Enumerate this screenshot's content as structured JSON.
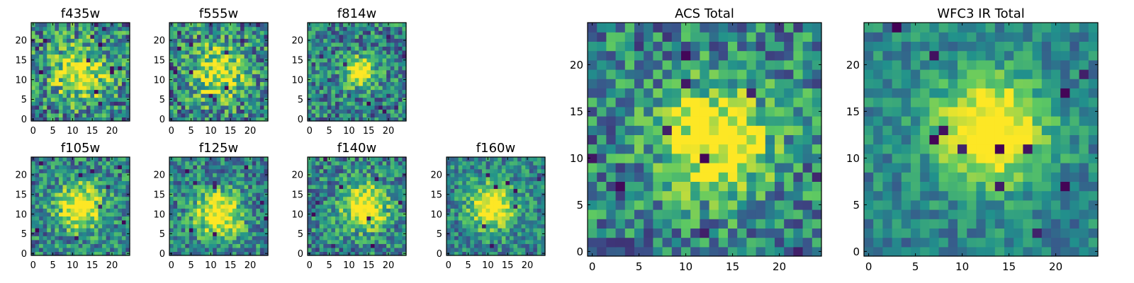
{
  "figure": {
    "background": "#ffffff",
    "colormap": [
      "#440154",
      "#3b528b",
      "#21918c",
      "#5ec962",
      "#fde725"
    ]
  },
  "chart_data": [
    {
      "type": "heatmap",
      "title": "f435w",
      "grid_size": 25,
      "xlim": [
        0,
        24
      ],
      "ylim": [
        0,
        24
      ],
      "xticks": [
        0,
        5,
        10,
        15,
        20
      ],
      "yticks": [
        0,
        5,
        10,
        15,
        20
      ],
      "center": [
        12,
        12
      ],
      "peak": 0.55,
      "width": 5,
      "noise": 0.35,
      "seed": 11,
      "dark_pixels": 14
    },
    {
      "type": "heatmap",
      "title": "f555w",
      "grid_size": 25,
      "xlim": [
        0,
        24
      ],
      "ylim": [
        0,
        24
      ],
      "xticks": [
        0,
        5,
        10,
        15,
        20
      ],
      "yticks": [
        0,
        5,
        10,
        15,
        20
      ],
      "center": [
        12,
        12
      ],
      "peak": 0.55,
      "width": 5,
      "noise": 0.35,
      "seed": 23,
      "dark_pixels": 12
    },
    {
      "type": "heatmap",
      "title": "f814w",
      "grid_size": 25,
      "xlim": [
        0,
        24
      ],
      "ylim": [
        0,
        24
      ],
      "xticks": [
        0,
        5,
        10,
        15,
        20
      ],
      "yticks": [
        0,
        5,
        10,
        15,
        20
      ],
      "center": [
        13,
        12
      ],
      "peak": 0.75,
      "width": 2.5,
      "noise": 0.3,
      "seed": 37,
      "dark_pixels": 8
    },
    {
      "type": "heatmap",
      "title": "f105w",
      "grid_size": 25,
      "xlim": [
        0,
        24
      ],
      "ylim": [
        0,
        24
      ],
      "xticks": [
        0,
        5,
        10,
        15,
        20
      ],
      "yticks": [
        0,
        5,
        10,
        15,
        20
      ],
      "center": [
        12,
        12
      ],
      "peak": 0.7,
      "width": 4,
      "noise": 0.28,
      "seed": 41,
      "dark_pixels": 9
    },
    {
      "type": "heatmap",
      "title": "f125w",
      "grid_size": 25,
      "xlim": [
        0,
        24
      ],
      "ylim": [
        0,
        24
      ],
      "xticks": [
        0,
        5,
        10,
        15,
        20
      ],
      "yticks": [
        0,
        5,
        10,
        15,
        20
      ],
      "center": [
        12,
        10
      ],
      "peak": 0.7,
      "width": 4,
      "noise": 0.28,
      "seed": 53,
      "dark_pixels": 9
    },
    {
      "type": "heatmap",
      "title": "f140w",
      "grid_size": 25,
      "xlim": [
        0,
        24
      ],
      "ylim": [
        0,
        24
      ],
      "xticks": [
        0,
        5,
        10,
        15,
        20
      ],
      "yticks": [
        0,
        5,
        10,
        15,
        20
      ],
      "center": [
        14,
        12
      ],
      "peak": 0.7,
      "width": 4,
      "noise": 0.28,
      "seed": 67,
      "dark_pixels": 9
    },
    {
      "type": "heatmap",
      "title": "f160w",
      "grid_size": 25,
      "xlim": [
        0,
        24
      ],
      "ylim": [
        0,
        24
      ],
      "xticks": [
        0,
        5,
        10,
        15,
        20
      ],
      "yticks": [
        0,
        5,
        10,
        15,
        20
      ],
      "center": [
        11,
        12
      ],
      "peak": 0.7,
      "width": 4,
      "noise": 0.25,
      "seed": 79,
      "dark_pixels": 8
    },
    {
      "type": "heatmap",
      "title": "ACS Total",
      "grid_size": 25,
      "xlim": [
        0,
        24
      ],
      "ylim": [
        0,
        24
      ],
      "xticks": [
        0,
        5,
        10,
        15,
        20
      ],
      "yticks": [
        0,
        5,
        10,
        15,
        20
      ],
      "center": [
        13,
        12
      ],
      "peak": 0.7,
      "width": 4,
      "noise": 0.3,
      "seed": 97,
      "dark_pixels": 10
    },
    {
      "type": "heatmap",
      "title": "WFC3 IR Total",
      "grid_size": 25,
      "xlim": [
        0,
        24
      ],
      "ylim": [
        0,
        24
      ],
      "xticks": [
        0,
        5,
        10,
        15,
        20
      ],
      "yticks": [
        0,
        5,
        10,
        15,
        20
      ],
      "center": [
        13,
        13
      ],
      "peak": 0.75,
      "width": 4,
      "noise": 0.18,
      "seed": 131,
      "dark_pixels": 12
    }
  ]
}
